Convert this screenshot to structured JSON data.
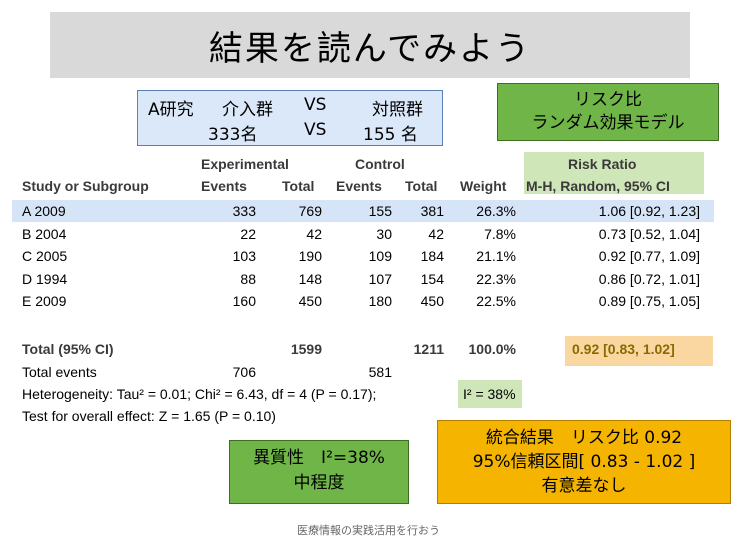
{
  "title": "結果を読んでみよう",
  "info_box": {
    "line1_a": "A研究",
    "line1_b": "介入群",
    "line1_c": "VS",
    "line1_d": "対照群",
    "line2_a": "333名",
    "line2_b": "VS",
    "line2_c": "155 名"
  },
  "model_box": {
    "line1": "リスク比",
    "line2": "ランダム効果モデル"
  },
  "table": {
    "headers": {
      "experimental": "Experimental",
      "control": "Control",
      "risk_ratio": "Risk Ratio",
      "study": "Study or Subgroup",
      "events": "Events",
      "total": "Total",
      "weight": "Weight",
      "method": "M-H, Random, 95% CI"
    },
    "rows": [
      {
        "study": "A 2009",
        "e_events": "333",
        "e_total": "769",
        "c_events": "155",
        "c_total": "381",
        "weight": "26.3%",
        "rr": "1.06 [0.92, 1.23]"
      },
      {
        "study": "B 2004",
        "e_events": "22",
        "e_total": "42",
        "c_events": "30",
        "c_total": "42",
        "weight": "7.8%",
        "rr": "0.73 [0.52, 1.04]"
      },
      {
        "study": "C 2005",
        "e_events": "103",
        "e_total": "190",
        "c_events": "109",
        "c_total": "184",
        "weight": "21.1%",
        "rr": "0.92 [0.77, 1.09]"
      },
      {
        "study": "D 1994",
        "e_events": "88",
        "e_total": "148",
        "c_events": "107",
        "c_total": "154",
        "weight": "22.3%",
        "rr": "0.86 [0.72, 1.01]"
      },
      {
        "study": "E 2009",
        "e_events": "160",
        "e_total": "450",
        "c_events": "180",
        "c_total": "450",
        "weight": "22.5%",
        "rr": "0.89 [0.75, 1.05]"
      }
    ],
    "total_row": {
      "label": "Total (95% CI)",
      "e_total": "1599",
      "c_total": "1211",
      "weight": "100.0%",
      "rr": "0.92 [0.83, 1.02]"
    },
    "total_events": {
      "label": "Total events",
      "e_events": "706",
      "c_events": "581"
    },
    "heterogeneity": "Heterogeneity: Tau² = 0.01; Chi² = 6.43, df = 4 (P = 0.17);",
    "i2": "I² = 38%",
    "overall_effect": "Test for overall effect: Z = 1.65 (P = 0.10)"
  },
  "heterogeneity_box": {
    "line1": "異質性　I²=38%",
    "line2": "中程度"
  },
  "result_box": {
    "line1": "統合結果　リスク比 0.92",
    "line2": "95%信頼区間[ 0.83 - 1.02 ]",
    "line3": "有意差なし"
  },
  "footer": "医療情報の実践活用を行おう"
}
